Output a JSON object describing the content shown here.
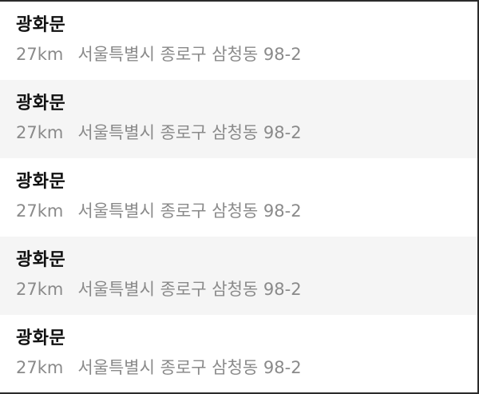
{
  "results": [
    {
      "name": "광화문",
      "distance": "27km",
      "address": "서울특별시 종로구 삼청동 98-2"
    },
    {
      "name": "광화문",
      "distance": "27km",
      "address": "서울특별시 종로구 삼청동 98-2"
    },
    {
      "name": "광화문",
      "distance": "27km",
      "address": "서울특별시 종로구 삼청동 98-2"
    },
    {
      "name": "광화문",
      "distance": "27km",
      "address": "서울특별시 종로구 삼청동 98-2"
    },
    {
      "name": "광화문",
      "distance": "27km",
      "address": "서울특별시 종로구 삼청동 98-2"
    }
  ],
  "colors": {
    "row_alt_background": "#f5f5f5",
    "row_background": "#ffffff",
    "name_text": "#111111",
    "meta_text": "#8a8a8a"
  }
}
